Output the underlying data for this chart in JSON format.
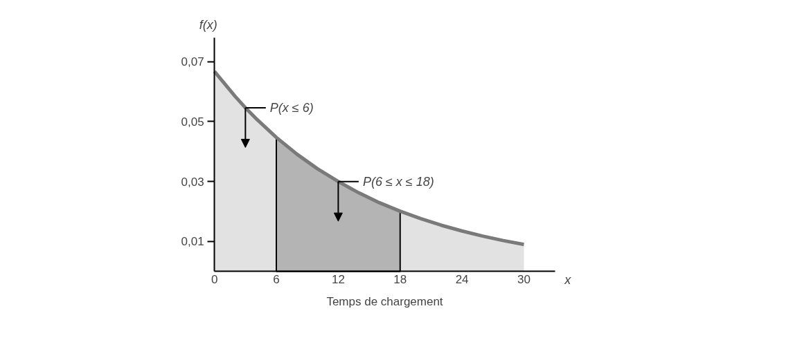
{
  "chart_data": {
    "type": "area",
    "xlabel": "Temps de chargement",
    "ylabel": "f(x)",
    "xlim": [
      0,
      33
    ],
    "ylim": [
      0,
      0.078
    ],
    "xticks": [
      0,
      6,
      12,
      18,
      24,
      30
    ],
    "yticks": [
      {
        "value": 0.01,
        "label": "0,01"
      },
      {
        "value": 0.03,
        "label": "0,03"
      },
      {
        "value": 0.05,
        "label": "0,05"
      },
      {
        "value": 0.07,
        "label": "0,07"
      }
    ],
    "series": [
      {
        "color": "#7a7a7a",
        "x": [
          0,
          2,
          3,
          4,
          6,
          8,
          10,
          12,
          14,
          16,
          18,
          20,
          22,
          24,
          26,
          28,
          30
        ],
        "values": [
          0.0667,
          0.0584,
          0.0546,
          0.0511,
          0.0447,
          0.0391,
          0.0342,
          0.03,
          0.0262,
          0.0229,
          0.0201,
          0.0176,
          0.0154,
          0.0135,
          0.0118,
          0.0103,
          0.009
        ]
      },
      {
        "color": "#b4b4b4",
        "x": [
          6,
          8,
          10,
          12,
          14,
          16,
          18
        ],
        "values": [
          0.0447,
          0.0391,
          0.0342,
          0.03,
          0.0262,
          0.0229,
          0.0201
        ]
      }
    ],
    "annotations": [
      {
        "text": "P(x ≤ 6)",
        "x": 3,
        "y": 0.0546
      },
      {
        "text": "P(6 ≤ x ≤ 18)",
        "x": 12,
        "y": 0.03
      },
      "x"
    ]
  }
}
